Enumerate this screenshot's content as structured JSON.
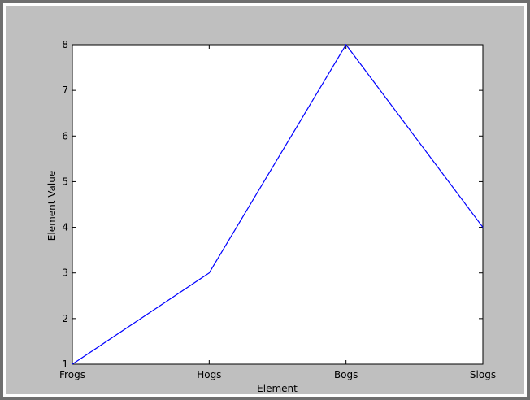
{
  "chart_data": {
    "type": "line",
    "title": "",
    "xlabel": "Element",
    "ylabel": "Element Value",
    "categories": [
      "Frogs",
      "Hogs",
      "Bogs",
      "Slogs"
    ],
    "series": [
      {
        "values": [
          1,
          3,
          8,
          4
        ],
        "color": "#0000ff"
      }
    ],
    "ylim": [
      1,
      8
    ],
    "yticks": [
      "1",
      "2",
      "3",
      "4",
      "5",
      "6",
      "7",
      "8"
    ],
    "grid": false,
    "legend": "none",
    "colors": {
      "figure_background": "#bfbfbf",
      "plot_background": "#ffffff",
      "line": "#0000ff"
    }
  }
}
